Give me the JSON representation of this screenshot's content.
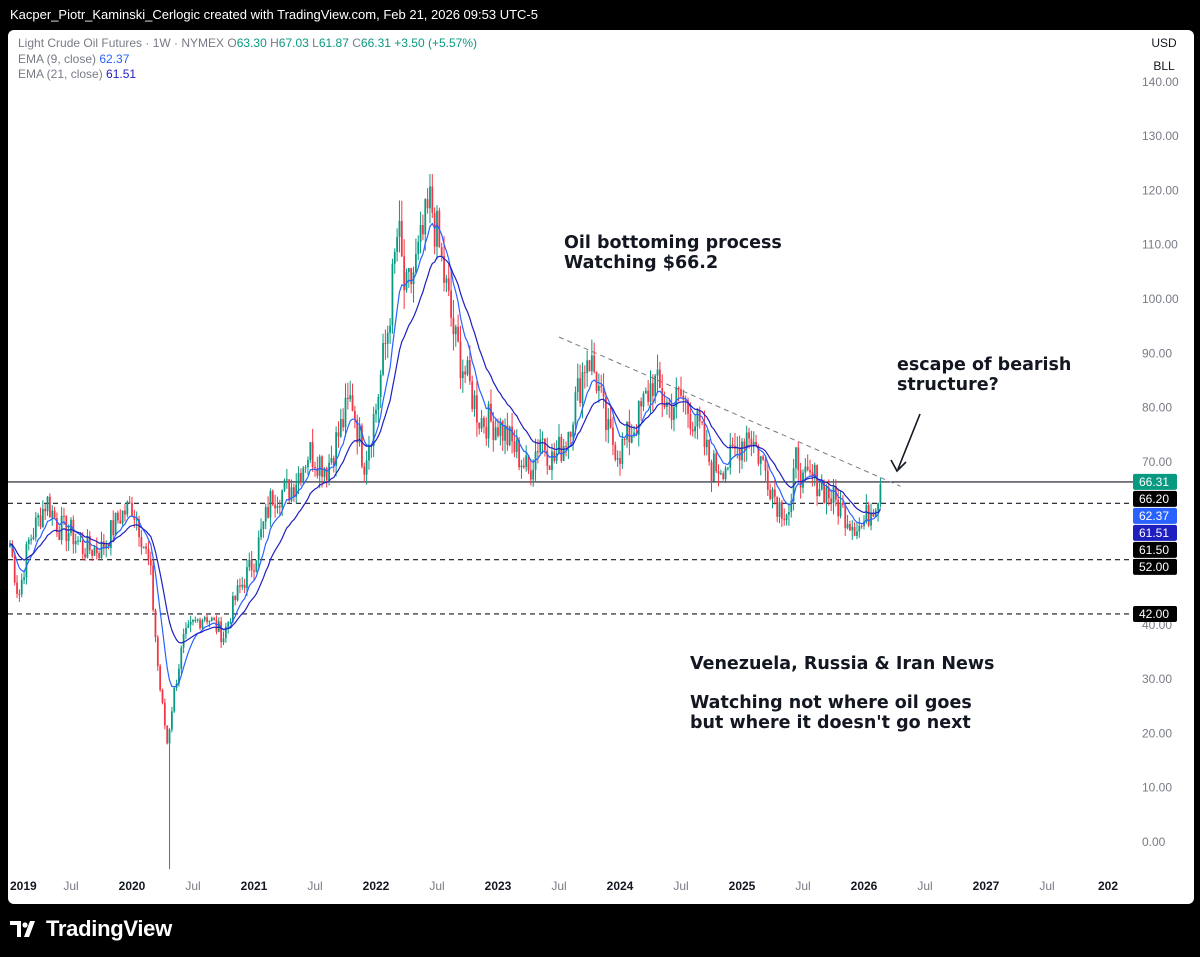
{
  "header": {
    "credit": "Kacper_Piotr_Kaminski_Cerlogic created with TradingView.com, Feb 21, 2026 09:53 UTC-5"
  },
  "legend": {
    "symbol": "Light Crude Oil Futures · 1W · NYMEX",
    "o_label": "O",
    "o_value": "63.30",
    "h_label": "H",
    "h_value": "67.03",
    "l_label": "L",
    "l_value": "61.87",
    "c_label": "C",
    "c_value": "66.31",
    "change": "+3.50 (+5.57%)",
    "ema9_label": "EMA (9, close)",
    "ema9_value": "62.37",
    "ema21_label": "EMA (21, close)",
    "ema21_value": "61.51"
  },
  "scale_units": {
    "currency": "USD",
    "unit": "BLL"
  },
  "annotations": {
    "bottoming_line1": "Oil bottoming process",
    "bottoming_line2": "Watching $66.2",
    "escape_line1": "escape of bearish",
    "escape_line2": "structure?",
    "news_line1": "Venezuela, Russia & Iran News",
    "watch_line1": "Watching not where oil goes",
    "watch_line2": "but where it doesn't go next"
  },
  "footer": {
    "brand": "TradingView"
  },
  "chart_data": {
    "type": "candlestick",
    "title": "Light Crude Oil Futures · 1W · NYMEX",
    "y_ticks": [
      0,
      10,
      20,
      30,
      40,
      50,
      60,
      70,
      80,
      90,
      100,
      110,
      120,
      130,
      140
    ],
    "y_tick_labels": [
      "0.00",
      "10.00",
      "20.00",
      "30.00",
      "40.00",
      "50.00",
      "60.00",
      "70.00",
      "80.00",
      "90.00",
      "100.00",
      "110.00",
      "120.00",
      "130.00",
      "140.00"
    ],
    "x_ticks": [
      {
        "t": 2019.0,
        "label": "2019"
      },
      {
        "t": 2019.5,
        "label": "Jul"
      },
      {
        "t": 2020.0,
        "label": "2020"
      },
      {
        "t": 2020.5,
        "label": "Jul"
      },
      {
        "t": 2021.0,
        "label": "2021"
      },
      {
        "t": 2021.5,
        "label": "Jul"
      },
      {
        "t": 2022.0,
        "label": "2022"
      },
      {
        "t": 2022.5,
        "label": "Jul"
      },
      {
        "t": 2023.0,
        "label": "2023"
      },
      {
        "t": 2023.5,
        "label": "Jul"
      },
      {
        "t": 2024.0,
        "label": "2024"
      },
      {
        "t": 2024.5,
        "label": "Jul"
      },
      {
        "t": 2025.0,
        "label": "2025"
      },
      {
        "t": 2025.5,
        "label": "Jul"
      },
      {
        "t": 2026.0,
        "label": "2026"
      },
      {
        "t": 2026.5,
        "label": "Jul"
      },
      {
        "t": 2027.0,
        "label": "2027"
      },
      {
        "t": 2027.5,
        "label": "Jul"
      },
      {
        "t": 2028.0,
        "label": "202"
      }
    ],
    "anchors": [
      [
        2019.0,
        55
      ],
      [
        2019.07,
        45
      ],
      [
        2019.15,
        55
      ],
      [
        2019.3,
        63
      ],
      [
        2019.4,
        58
      ],
      [
        2019.5,
        57
      ],
      [
        2019.6,
        54
      ],
      [
        2019.75,
        54
      ],
      [
        2019.9,
        60
      ],
      [
        2020.0,
        62
      ],
      [
        2020.05,
        59
      ],
      [
        2020.15,
        50
      ],
      [
        2020.22,
        30
      ],
      [
        2020.29,
        18
      ],
      [
        2020.34,
        27
      ],
      [
        2020.42,
        37
      ],
      [
        2020.5,
        40
      ],
      [
        2020.6,
        42
      ],
      [
        2020.75,
        38
      ],
      [
        2020.85,
        45
      ],
      [
        2021.0,
        52
      ],
      [
        2021.15,
        64
      ],
      [
        2021.3,
        65
      ],
      [
        2021.45,
        72
      ],
      [
        2021.6,
        69
      ],
      [
        2021.8,
        82
      ],
      [
        2021.9,
        70
      ],
      [
        2022.0,
        80
      ],
      [
        2022.1,
        95
      ],
      [
        2022.18,
        113
      ],
      [
        2022.24,
        100
      ],
      [
        2022.35,
        108
      ],
      [
        2022.45,
        118
      ],
      [
        2022.55,
        105
      ],
      [
        2022.65,
        92
      ],
      [
        2022.75,
        85
      ],
      [
        2022.85,
        78
      ],
      [
        2023.0,
        77
      ],
      [
        2023.15,
        72
      ],
      [
        2023.25,
        68
      ],
      [
        2023.35,
        75
      ],
      [
        2023.45,
        70
      ],
      [
        2023.55,
        74
      ],
      [
        2023.68,
        85
      ],
      [
        2023.73,
        90
      ],
      [
        2023.8,
        86
      ],
      [
        2023.9,
        75
      ],
      [
        2024.0,
        72
      ],
      [
        2024.15,
        78
      ],
      [
        2024.27,
        85
      ],
      [
        2024.4,
        80
      ],
      [
        2024.5,
        82
      ],
      [
        2024.65,
        76
      ],
      [
        2024.75,
        69
      ],
      [
        2024.9,
        70
      ],
      [
        2025.0,
        74
      ],
      [
        2025.05,
        76
      ],
      [
        2025.2,
        68
      ],
      [
        2025.3,
        62
      ],
      [
        2025.4,
        61
      ],
      [
        2025.45,
        72
      ],
      [
        2025.5,
        66
      ],
      [
        2025.6,
        67
      ],
      [
        2025.75,
        63
      ],
      [
        2025.9,
        59
      ],
      [
        2025.98,
        58
      ],
      [
        2026.05,
        61
      ],
      [
        2026.1,
        63.3
      ],
      [
        2026.14,
        66.31
      ]
    ],
    "horizontal_levels": [
      {
        "value": 66.31,
        "style": "solid",
        "label": "66.31",
        "tag_color": "#089981",
        "text_color": "#ffffff"
      },
      {
        "value": 66.2,
        "style": "none",
        "label": "66.20",
        "tag_color": "#000000",
        "text_color": "#ffffff"
      },
      {
        "value": 62.37,
        "style": "dashed",
        "label": "62.37",
        "tag_color": "#2962ff",
        "text_color": "#ffffff"
      },
      {
        "value": 61.51,
        "style": "none",
        "label": "61.51",
        "tag_color": "#1f1fbf",
        "text_color": "#ffffff"
      },
      {
        "value": 61.5,
        "style": "none",
        "label": "61.50",
        "tag_color": "#000000",
        "text_color": "#ffffff"
      },
      {
        "value": 52.0,
        "style": "dashed",
        "label": "52.00",
        "tag_color": "#000000",
        "text_color": "#ffffff"
      },
      {
        "value": 42.0,
        "style": "dashed",
        "label": "42.00",
        "tag_color": "#000000",
        "text_color": "#ffffff"
      }
    ],
    "trendline": {
      "from": [
        2023.5,
        93
      ],
      "to": [
        2026.3,
        65.5
      ]
    },
    "colors": {
      "up": "#089981",
      "down": "#f23645",
      "ema9": "#2962ff",
      "ema21": "#1f1fbf",
      "axis_text": "#787b86"
    }
  }
}
